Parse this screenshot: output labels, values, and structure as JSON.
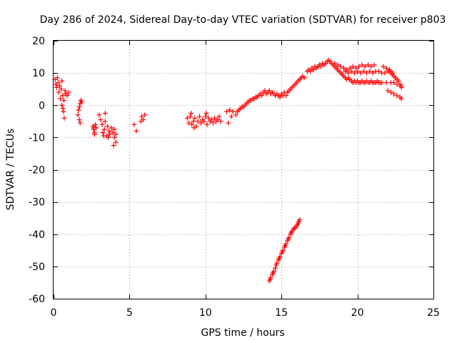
{
  "chart_data": {
    "type": "scatter",
    "title": "Day 286 of 2024, Sidereal Day-to-day VTEC variation (SDTVAR) for receiver p803",
    "xlabel": "GPS time / hours",
    "ylabel": "SDTVAR / TECUs",
    "xlim": [
      0,
      25
    ],
    "ylim": [
      -60,
      20
    ],
    "x_ticks": [
      0,
      5,
      10,
      15,
      20,
      25
    ],
    "y_ticks": [
      -60,
      -50,
      -40,
      -30,
      -20,
      -10,
      0,
      10,
      20
    ],
    "grid": true,
    "marker": "plus",
    "color": "#ff0000",
    "series": [
      {
        "name": "SDTVAR",
        "points": [
          [
            0.1,
            8.0
          ],
          [
            0.15,
            6.5
          ],
          [
            0.2,
            5.5
          ],
          [
            0.25,
            8.5
          ],
          [
            0.3,
            7.0
          ],
          [
            0.35,
            4.0
          ],
          [
            0.4,
            6.0
          ],
          [
            0.45,
            2.0
          ],
          [
            0.5,
            5.0
          ],
          [
            0.55,
            0.0
          ],
          [
            0.6,
            3.0
          ],
          [
            0.65,
            -2.0
          ],
          [
            0.7,
            -4.0
          ],
          [
            0.75,
            4.5
          ],
          [
            0.8,
            3.5
          ],
          [
            0.9,
            3.0
          ],
          [
            1.0,
            4.0
          ],
          [
            0.55,
            7.5
          ],
          [
            0.62,
            -1.0
          ],
          [
            0.68,
            1.5
          ],
          [
            1.6,
            -3.0
          ],
          [
            1.65,
            -1.5
          ],
          [
            1.7,
            -0.5
          ],
          [
            1.75,
            0.5
          ],
          [
            1.8,
            1.5
          ],
          [
            1.7,
            -4.5
          ],
          [
            1.75,
            -5.5
          ],
          [
            1.85,
            1.0
          ],
          [
            2.6,
            -6.5
          ],
          [
            2.65,
            -7.5
          ],
          [
            2.7,
            -8.5
          ],
          [
            2.75,
            -6.0
          ],
          [
            2.8,
            -7.0
          ],
          [
            2.7,
            -9.0
          ],
          [
            2.65,
            -7.0
          ],
          [
            3.0,
            -3.0
          ],
          [
            3.1,
            -4.5
          ],
          [
            3.2,
            -6.0
          ],
          [
            3.25,
            -8.5
          ],
          [
            3.3,
            -9.5
          ],
          [
            3.35,
            -7.5
          ],
          [
            3.4,
            -5.0
          ],
          [
            3.5,
            -9.5
          ],
          [
            3.6,
            -10.0
          ],
          [
            3.7,
            -9.0
          ],
          [
            3.8,
            -7.0
          ],
          [
            3.9,
            -8.5
          ],
          [
            4.0,
            -10.0
          ],
          [
            4.1,
            -11.5
          ],
          [
            4.1,
            -9.0
          ],
          [
            4.0,
            -7.5
          ],
          [
            3.4,
            -2.5
          ],
          [
            3.55,
            -6.5
          ],
          [
            3.65,
            -8.0
          ],
          [
            3.95,
            -12.5
          ],
          [
            5.3,
            -6.0
          ],
          [
            5.45,
            -8.0
          ],
          [
            5.8,
            -3.5
          ],
          [
            5.9,
            -4.5
          ],
          [
            6.0,
            -3.0
          ],
          [
            5.75,
            -5.0
          ],
          [
            8.8,
            -4.0
          ],
          [
            8.9,
            -5.5
          ],
          [
            9.0,
            -3.5
          ],
          [
            9.1,
            -6.0
          ],
          [
            9.2,
            -5.0
          ],
          [
            9.3,
            -4.0
          ],
          [
            9.4,
            -6.5
          ],
          [
            9.5,
            -5.0
          ],
          [
            9.6,
            -3.5
          ],
          [
            9.7,
            -5.5
          ],
          [
            9.8,
            -4.5
          ],
          [
            9.9,
            -5.0
          ],
          [
            10.0,
            -3.5
          ],
          [
            10.1,
            -6.0
          ],
          [
            10.2,
            -4.0
          ],
          [
            10.3,
            -5.0
          ],
          [
            10.4,
            -4.5
          ],
          [
            10.5,
            -5.5
          ],
          [
            10.6,
            -4.0
          ],
          [
            10.7,
            -5.0
          ],
          [
            10.8,
            -4.5
          ],
          [
            10.9,
            -3.5
          ],
          [
            11.0,
            -5.0
          ],
          [
            9.05,
            -2.5
          ],
          [
            9.25,
            -7.0
          ],
          [
            10.05,
            -2.5
          ],
          [
            11.4,
            -2.0
          ],
          [
            11.6,
            -1.5
          ],
          [
            11.8,
            -2.0
          ],
          [
            11.5,
            -5.5
          ],
          [
            11.7,
            -3.5
          ],
          [
            12.0,
            -3.0
          ],
          [
            12.1,
            -2.0
          ],
          [
            12.2,
            -1.5
          ],
          [
            12.3,
            -1.0
          ],
          [
            12.4,
            -0.5
          ],
          [
            12.5,
            -0.5
          ],
          [
            12.6,
            0.0
          ],
          [
            12.7,
            0.5
          ],
          [
            12.8,
            1.0
          ],
          [
            12.9,
            1.5
          ],
          [
            13.0,
            1.5
          ],
          [
            13.1,
            2.0
          ],
          [
            13.2,
            2.0
          ],
          [
            13.3,
            2.5
          ],
          [
            13.4,
            2.5
          ],
          [
            13.5,
            3.0
          ],
          [
            13.6,
            3.5
          ],
          [
            13.7,
            3.0
          ],
          [
            13.8,
            4.0
          ],
          [
            13.9,
            4.5
          ],
          [
            14.0,
            3.5
          ],
          [
            14.1,
            4.0
          ],
          [
            14.2,
            4.5
          ],
          [
            14.3,
            3.5
          ],
          [
            14.4,
            4.0
          ],
          [
            14.5,
            3.5
          ],
          [
            14.6,
            3.0
          ],
          [
            14.7,
            3.5
          ],
          [
            14.8,
            3.0
          ],
          [
            14.9,
            2.5
          ],
          [
            15.0,
            3.5
          ],
          [
            15.1,
            3.0
          ],
          [
            15.2,
            4.0
          ],
          [
            15.3,
            3.0
          ],
          [
            15.4,
            4.0
          ],
          [
            15.5,
            4.5
          ],
          [
            15.6,
            5.0
          ],
          [
            15.7,
            5.5
          ],
          [
            15.8,
            6.0
          ],
          [
            15.9,
            6.5
          ],
          [
            16.0,
            7.0
          ],
          [
            16.1,
            7.5
          ],
          [
            16.2,
            8.0
          ],
          [
            16.3,
            8.5
          ],
          [
            16.4,
            9.0
          ],
          [
            16.5,
            8.5
          ],
          [
            16.7,
            10.5
          ],
          [
            16.8,
            11.0
          ],
          [
            16.9,
            10.5
          ],
          [
            17.0,
            11.5
          ],
          [
            17.1,
            11.0
          ],
          [
            17.2,
            12.0
          ],
          [
            17.3,
            11.5
          ],
          [
            17.4,
            12.0
          ],
          [
            17.5,
            12.5
          ],
          [
            17.6,
            12.0
          ],
          [
            17.7,
            13.0
          ],
          [
            17.8,
            12.5
          ],
          [
            17.9,
            13.0
          ],
          [
            18.0,
            13.5
          ],
          [
            18.1,
            14.0
          ],
          [
            18.2,
            13.5
          ],
          [
            18.3,
            13.0
          ],
          [
            18.4,
            12.5
          ],
          [
            18.5,
            12.0
          ],
          [
            18.6,
            11.5
          ],
          [
            18.7,
            11.0
          ],
          [
            18.8,
            10.5
          ],
          [
            18.9,
            10.0
          ],
          [
            19.0,
            9.5
          ],
          [
            19.1,
            9.0
          ],
          [
            19.2,
            8.5
          ],
          [
            19.3,
            8.0
          ],
          [
            19.4,
            8.5
          ],
          [
            19.5,
            8.0
          ],
          [
            19.6,
            7.5
          ],
          [
            19.7,
            7.0
          ],
          [
            19.8,
            7.5
          ],
          [
            19.9,
            7.0
          ],
          [
            20.0,
            7.5
          ],
          [
            20.1,
            7.0
          ],
          [
            20.2,
            7.0
          ],
          [
            20.3,
            7.5
          ],
          [
            20.4,
            7.0
          ],
          [
            20.5,
            7.0
          ],
          [
            20.6,
            7.5
          ],
          [
            20.7,
            7.0
          ],
          [
            20.8,
            7.0
          ],
          [
            20.9,
            7.5
          ],
          [
            21.0,
            7.0
          ],
          [
            21.1,
            7.0
          ],
          [
            21.2,
            7.0
          ],
          [
            21.3,
            7.5
          ],
          [
            21.4,
            7.0
          ],
          [
            21.5,
            7.0
          ],
          [
            21.6,
            7.0
          ],
          [
            18.5,
            13.0
          ],
          [
            18.7,
            12.5
          ],
          [
            18.9,
            12.0
          ],
          [
            19.1,
            11.5
          ],
          [
            19.3,
            11.0
          ],
          [
            19.5,
            11.5
          ],
          [
            19.7,
            12.0
          ],
          [
            19.9,
            11.5
          ],
          [
            20.1,
            12.0
          ],
          [
            20.3,
            12.5
          ],
          [
            20.5,
            12.0
          ],
          [
            20.7,
            12.5
          ],
          [
            20.9,
            12.0
          ],
          [
            21.1,
            12.5
          ],
          [
            19.2,
            10.5
          ],
          [
            19.4,
            10.0
          ],
          [
            19.6,
            10.5
          ],
          [
            19.8,
            10.0
          ],
          [
            20.0,
            10.5
          ],
          [
            20.2,
            10.0
          ],
          [
            20.4,
            10.5
          ],
          [
            20.6,
            10.0
          ],
          [
            20.8,
            10.5
          ],
          [
            21.0,
            10.0
          ],
          [
            21.2,
            10.5
          ],
          [
            21.4,
            10.5
          ],
          [
            21.6,
            10.0
          ],
          [
            21.8,
            10.0
          ],
          [
            22.0,
            10.5
          ],
          [
            22.2,
            10.0
          ],
          [
            21.7,
            12.0
          ],
          [
            21.9,
            11.5
          ],
          [
            22.1,
            11.0
          ],
          [
            22.2,
            10.5
          ],
          [
            22.3,
            9.5
          ],
          [
            22.4,
            9.0
          ],
          [
            22.5,
            8.5
          ],
          [
            22.6,
            8.0
          ],
          [
            22.7,
            7.5
          ],
          [
            22.8,
            6.5
          ],
          [
            22.9,
            6.0
          ],
          [
            22.2,
            7.0
          ],
          [
            22.4,
            7.0
          ],
          [
            22.6,
            6.5
          ],
          [
            22.8,
            6.0
          ],
          [
            22.9,
            5.5
          ],
          [
            22.0,
            4.5
          ],
          [
            22.2,
            4.0
          ],
          [
            22.4,
            3.5
          ],
          [
            22.6,
            3.0
          ],
          [
            22.8,
            2.5
          ],
          [
            22.9,
            2.0
          ],
          [
            22.1,
            10.5
          ],
          [
            22.3,
            10.0
          ],
          [
            21.9,
            7.0
          ],
          [
            14.2,
            -54.5
          ],
          [
            14.3,
            -53.5
          ],
          [
            14.4,
            -52.5
          ],
          [
            14.5,
            -51.5
          ],
          [
            14.6,
            -50.5
          ],
          [
            14.7,
            -49.0
          ],
          [
            14.8,
            -48.0
          ],
          [
            14.9,
            -47.0
          ],
          [
            15.0,
            -46.0
          ],
          [
            15.1,
            -45.0
          ],
          [
            15.2,
            -44.0
          ],
          [
            15.3,
            -43.0
          ],
          [
            15.4,
            -42.0
          ],
          [
            15.5,
            -41.0
          ],
          [
            15.6,
            -40.0
          ],
          [
            15.7,
            -39.0
          ],
          [
            15.8,
            -38.5
          ],
          [
            15.9,
            -38.0
          ],
          [
            16.0,
            -37.5
          ],
          [
            16.1,
            -36.5
          ],
          [
            16.2,
            -35.5
          ],
          [
            14.25,
            -54.0
          ],
          [
            14.45,
            -52.0
          ],
          [
            14.65,
            -49.5
          ],
          [
            14.85,
            -47.5
          ],
          [
            15.05,
            -45.5
          ],
          [
            15.25,
            -43.5
          ],
          [
            15.45,
            -41.5
          ],
          [
            15.65,
            -39.5
          ],
          [
            15.85,
            -38.0
          ],
          [
            16.05,
            -37.0
          ],
          [
            16.15,
            -36.0
          ]
        ]
      }
    ]
  }
}
